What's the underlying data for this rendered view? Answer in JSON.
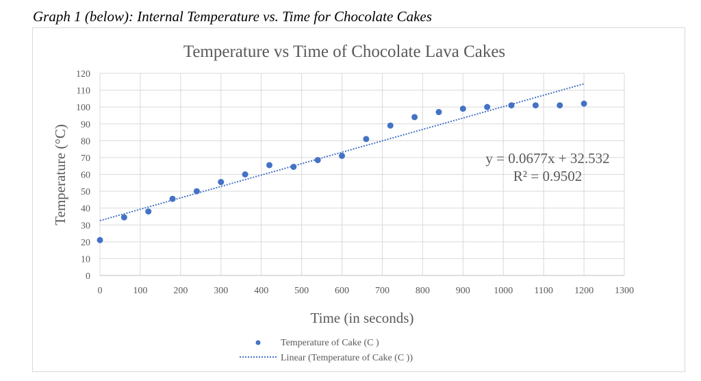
{
  "caption": "Graph 1 (below): Internal Temperature vs. Time for Chocolate Cakes",
  "chart_data": {
    "type": "scatter",
    "title": "Temperature vs Time of Chocolate Lava Cakes",
    "xlabel": "Time (in seconds)",
    "ylabel": "Temperature (°C)",
    "xlim": [
      0,
      1300
    ],
    "ylim": [
      0,
      120
    ],
    "xticks": [
      0,
      100,
      200,
      300,
      400,
      500,
      600,
      700,
      800,
      900,
      1000,
      1100,
      1200,
      1300
    ],
    "yticks": [
      0,
      10,
      20,
      30,
      40,
      50,
      60,
      70,
      80,
      90,
      100,
      110,
      120
    ],
    "grid": true,
    "legend_placement": "bottom",
    "series": [
      {
        "name": "Temperature of Cake (C )",
        "color": "#4472c4",
        "x": [
          0,
          60,
          120,
          180,
          240,
          300,
          360,
          420,
          480,
          540,
          600,
          660,
          720,
          780,
          840,
          900,
          960,
          1020,
          1080,
          1140,
          1200
        ],
        "y": [
          21,
          34.5,
          38,
          45.5,
          50,
          55.5,
          60,
          65.5,
          64.5,
          68.5,
          71,
          81,
          89,
          94,
          97,
          99,
          100,
          101,
          101,
          101,
          102
        ]
      }
    ],
    "trendline": {
      "name": "Linear (Temperature of Cake (C ))",
      "slope": 0.0677,
      "intercept": 32.532,
      "x_range": [
        0,
        1200
      ],
      "color": "#4472c4",
      "equation": "y = 0.0677x + 32.532",
      "r_squared": "R² = 0.9502"
    }
  }
}
